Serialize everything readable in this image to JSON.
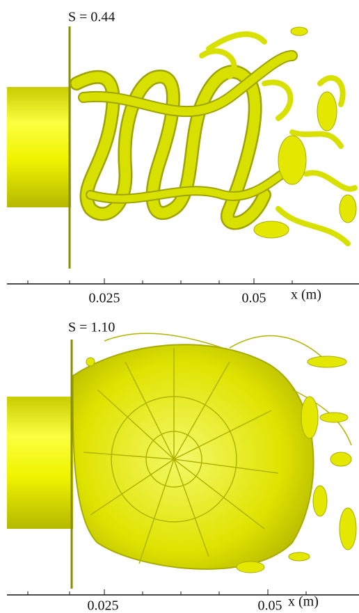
{
  "panels": [
    {
      "label": "S = 0.44",
      "ticks": [
        "0.025",
        "0.05"
      ],
      "axis_label": "x (m)"
    },
    {
      "label": "S = 1.10",
      "ticks": [
        "0.025",
        "0.05"
      ],
      "axis_label": "x (m)"
    }
  ]
}
